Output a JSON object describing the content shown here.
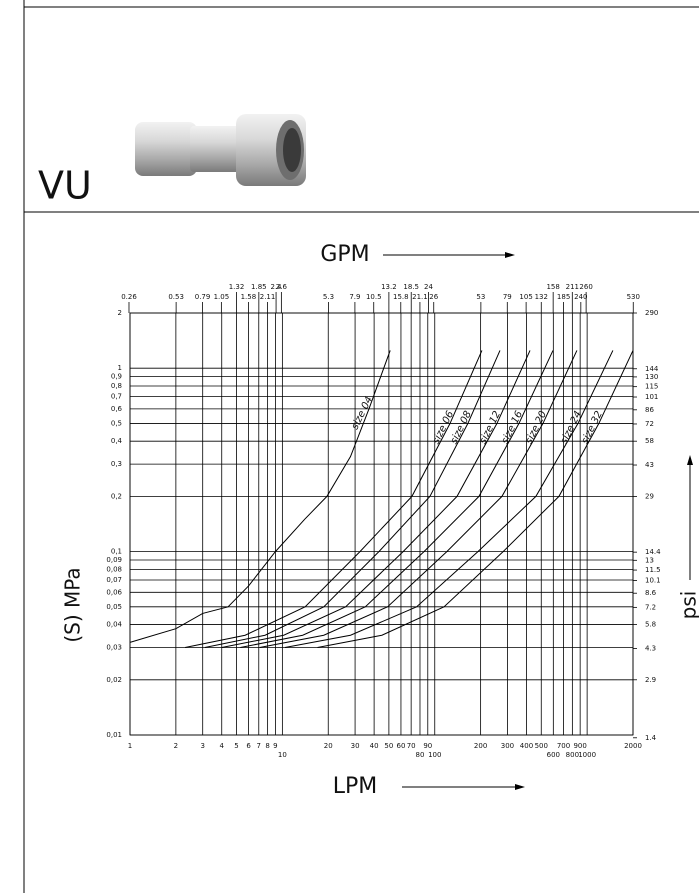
{
  "header": {
    "title": "VU"
  },
  "chart_data": {
    "type": "line",
    "title": "GPM",
    "xlabel": "LPM",
    "ylabel": "(S) MPa",
    "y2label": "psi",
    "xscale": "log",
    "yscale": "log",
    "grid": true,
    "xlim": [
      1,
      2000
    ],
    "xticks": [
      1,
      2,
      3,
      4,
      5,
      6,
      7,
      8,
      9,
      10,
      20,
      30,
      40,
      50,
      60,
      70,
      80,
      90,
      100,
      200,
      300,
      400,
      500,
      600,
      700,
      800,
      900,
      1000,
      2000
    ],
    "x2lim": [
      0.264,
      528
    ],
    "x2ticks": [
      0.26,
      0.53,
      0.79,
      1.05,
      1.32,
      1.58,
      1.85,
      2.11,
      2.4,
      2.6,
      5.3,
      7.9,
      10.5,
      13.2,
      15.8,
      18.5,
      21.1,
      24,
      26,
      53,
      79,
      105,
      132,
      158,
      185,
      211,
      240,
      260,
      530
    ],
    "ylim": [
      0.01,
      2
    ],
    "yticks": [
      2,
      1,
      {
        "value": 0.9,
        "label": "0,9"
      },
      {
        "value": 0.8,
        "label": "0,8"
      },
      {
        "value": 0.7,
        "label": "0,7"
      },
      {
        "value": 0.6,
        "label": "0,6"
      },
      {
        "value": 0.5,
        "label": "0,5"
      },
      {
        "value": 0.4,
        "label": "0,4"
      },
      {
        "value": 0.3,
        "label": "0,3"
      },
      {
        "value": 0.2,
        "label": "0,2"
      },
      {
        "value": 0.1,
        "label": "0,1"
      },
      {
        "value": 0.09,
        "label": "0,09"
      },
      {
        "value": 0.08,
        "label": "0,08"
      },
      {
        "value": 0.07,
        "label": "0,07"
      },
      {
        "value": 0.06,
        "label": "0,06"
      },
      {
        "value": 0.05,
        "label": "0,05"
      },
      {
        "value": 0.04,
        "label": "0,04"
      },
      {
        "value": 0.03,
        "label": "0,03"
      },
      {
        "value": 0.02,
        "label": "0,02"
      },
      {
        "value": 0.01,
        "label": "0,01"
      }
    ],
    "y2lim": [
      1.45,
      290
    ],
    "y2ticks": [
      290,
      144,
      130,
      115,
      101,
      86,
      72,
      58,
      43,
      29,
      14.4,
      13,
      11.5,
      10.1,
      8.6,
      7.2,
      5.8,
      4.3,
      2.9,
      1.4
    ],
    "series": [
      {
        "name": "size 04",
        "color": "#000000",
        "x": [
          1,
          2,
          3,
          4.4,
          6,
          9,
          14,
          19.6,
          28,
          37,
          51
        ],
        "values": [
          0.032,
          0.038,
          0.046,
          0.05,
          0.065,
          0.1,
          0.15,
          0.2,
          0.33,
          0.6,
          1.25
        ]
      },
      {
        "name": "size 06",
        "color": "#000000",
        "x": [
          2.3,
          5.7,
          14.1,
          32.3,
          70.8,
          126,
          204
        ],
        "values": [
          0.03,
          0.035,
          0.05,
          0.1,
          0.2,
          0.5,
          1.25
        ]
      },
      {
        "name": "size 08",
        "color": "#000000",
        "x": [
          3.1,
          7.7,
          18.7,
          43,
          93,
          165,
          268
        ],
        "values": [
          0.03,
          0.035,
          0.05,
          0.1,
          0.2,
          0.5,
          1.25
        ]
      },
      {
        "name": "size 12",
        "color": "#000000",
        "x": [
          4,
          10.2,
          26,
          62,
          140,
          256,
          422
        ],
        "values": [
          0.03,
          0.035,
          0.05,
          0.1,
          0.2,
          0.5,
          1.25
        ]
      },
      {
        "name": "size 16",
        "color": "#000000",
        "x": [
          5.3,
          13.6,
          35,
          85,
          195,
          357,
          597
        ],
        "values": [
          0.03,
          0.035,
          0.05,
          0.1,
          0.2,
          0.5,
          1.25
        ]
      },
      {
        "name": "size 20",
        "color": "#000000",
        "x": [
          7.1,
          18.7,
          49,
          120,
          276,
          513,
          857
        ],
        "values": [
          0.03,
          0.035,
          0.05,
          0.1,
          0.2,
          0.5,
          1.25
        ]
      },
      {
        "name": "size 24",
        "color": "#000000",
        "x": [
          10.4,
          28,
          76,
          192,
          461,
          871,
          1476
        ],
        "values": [
          0.03,
          0.035,
          0.05,
          0.1,
          0.2,
          0.5,
          1.25
        ]
      },
      {
        "name": "size 32",
        "color": "#000000",
        "x": [
          17,
          45,
          115,
          281,
          653,
          1194,
          2000
        ],
        "values": [
          0.03,
          0.035,
          0.05,
          0.1,
          0.2,
          0.5,
          1.25
        ]
      }
    ]
  }
}
